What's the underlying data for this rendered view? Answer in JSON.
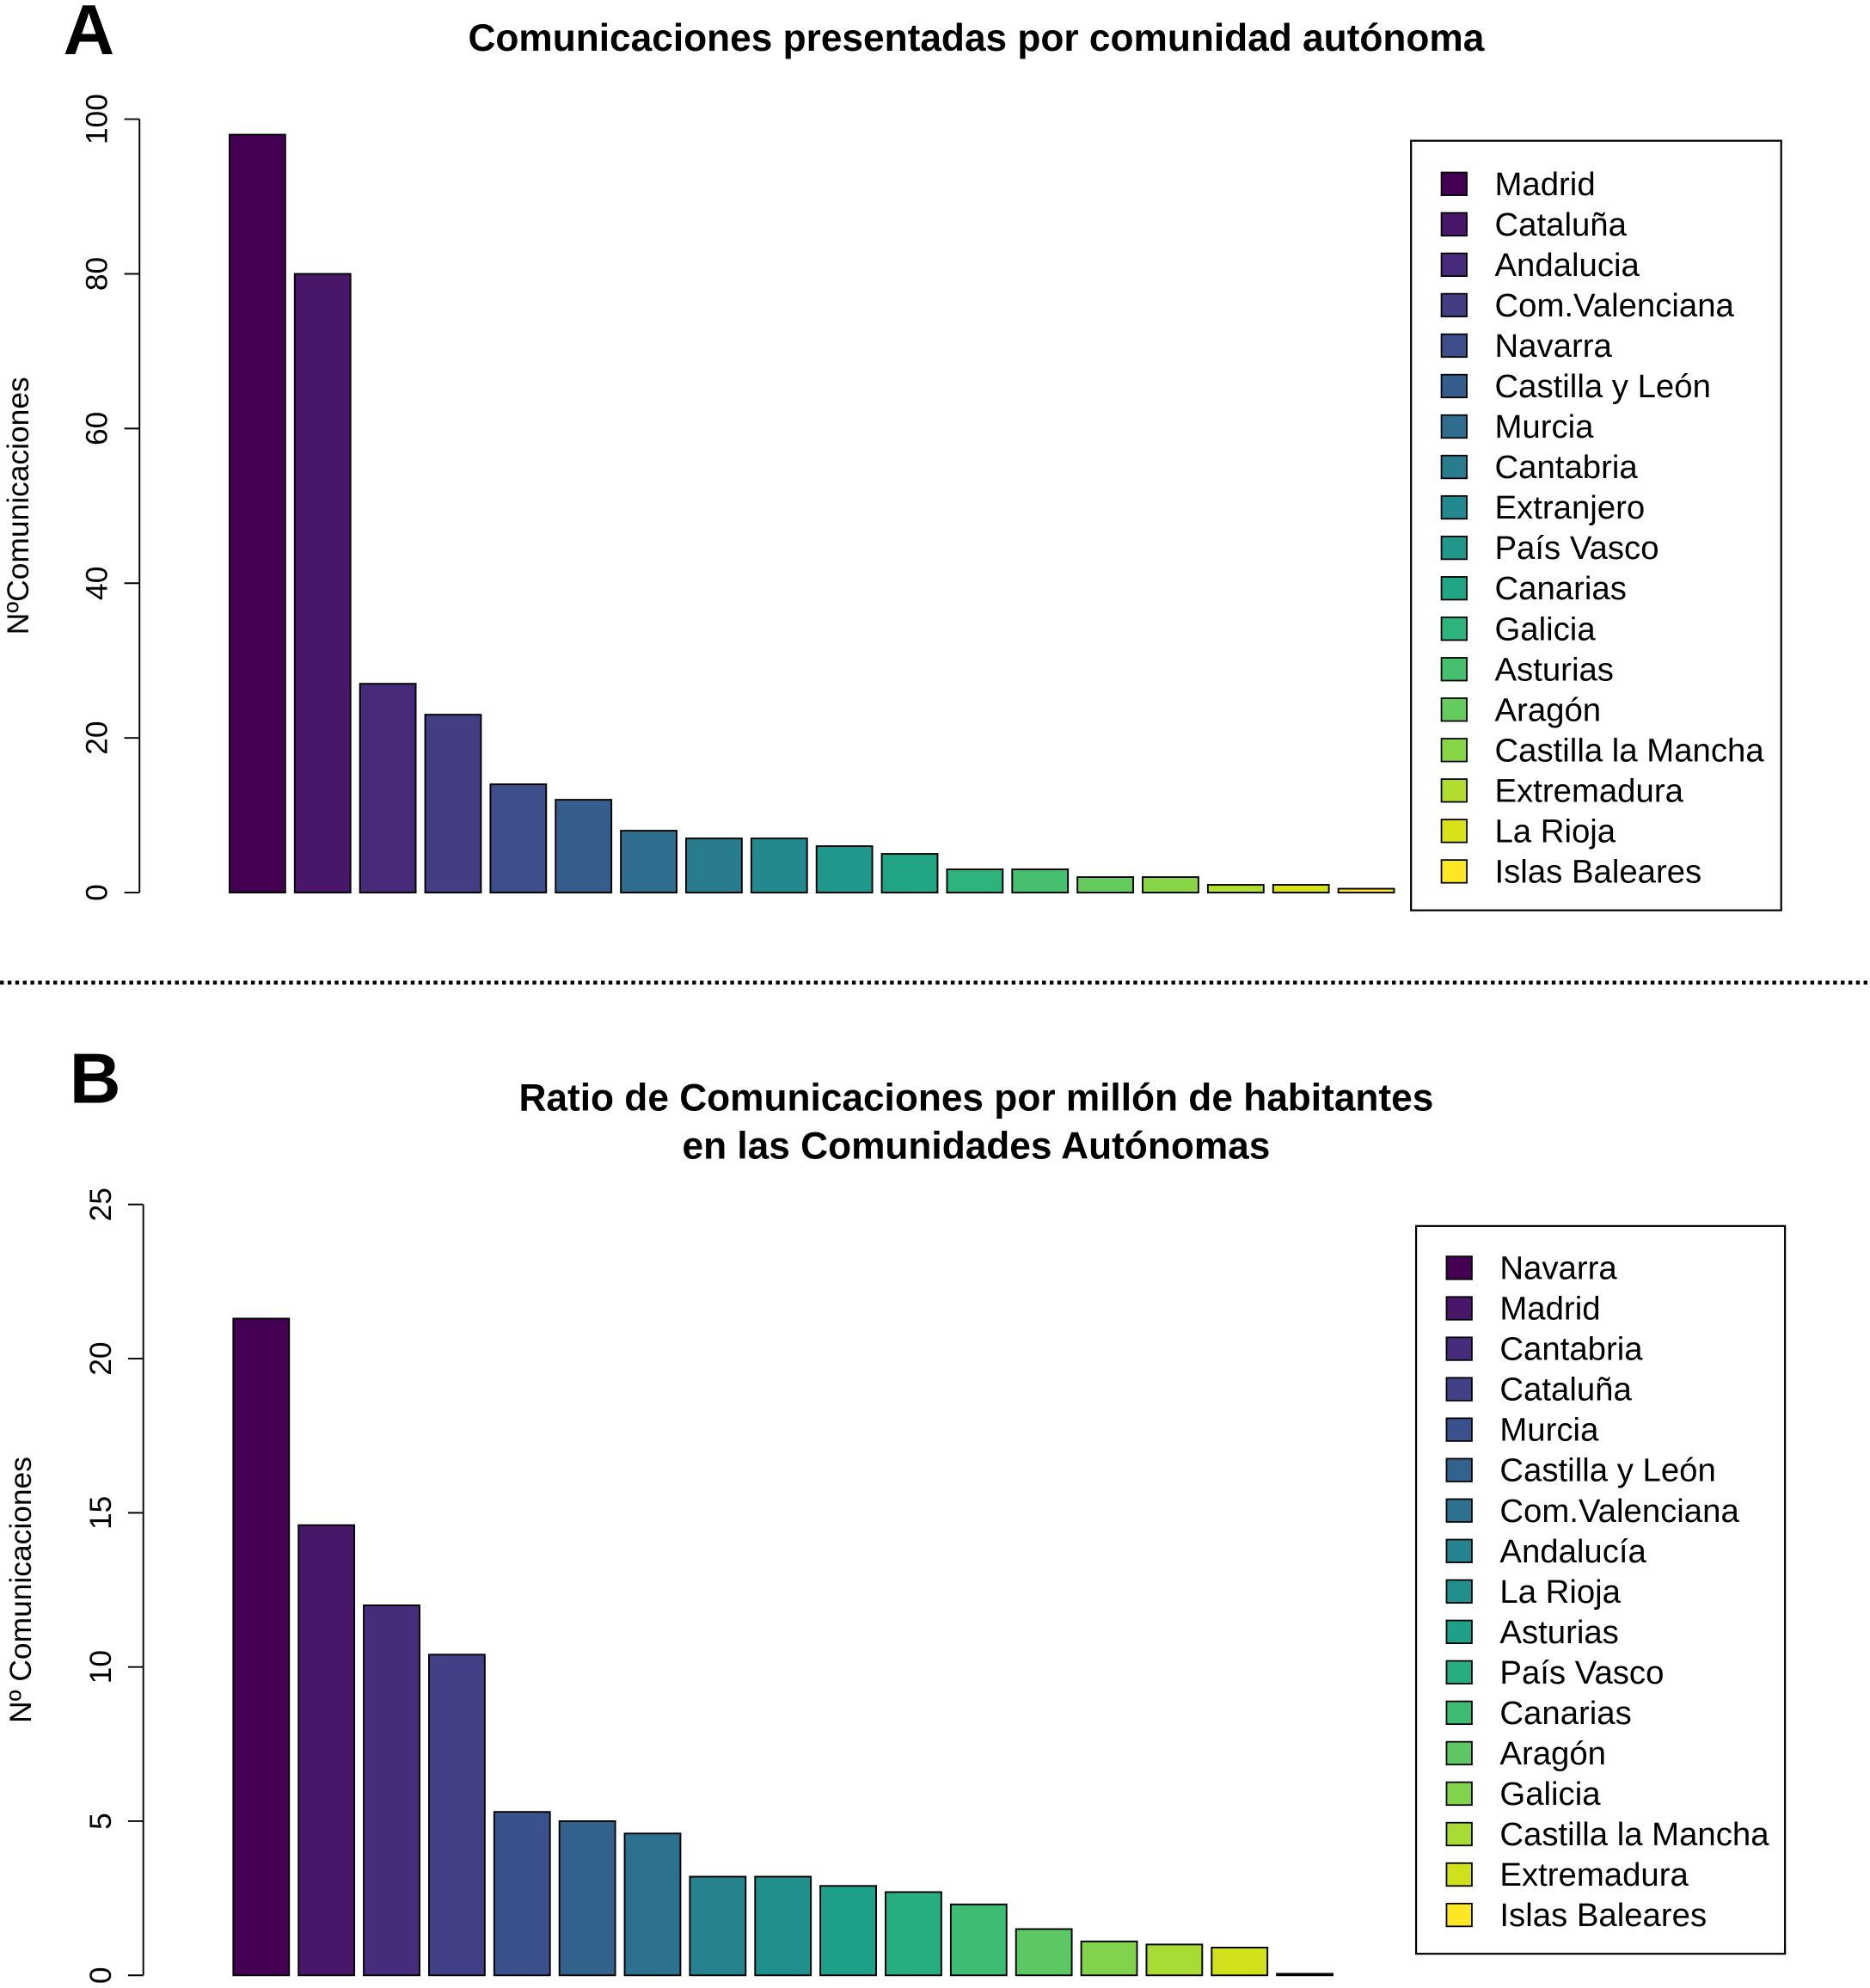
{
  "chart_data": [
    {
      "type": "bar",
      "panel": "A",
      "title": [
        "Comunicaciones presentadas por comunidad autónoma"
      ],
      "ylabel": "NºComunicaciones",
      "categories": [
        "Madrid",
        "Cataluña",
        "Andalucia",
        "Com.Valenciana",
        "Navarra",
        "Castilla y León",
        "Murcia",
        "Cantabria",
        "Extranjero",
        "País Vasco",
        "Canarias",
        "Galicia",
        "Asturias",
        "Aragón",
        "Castilla la Mancha",
        "Extremadura",
        "La Rioja",
        "Islas Baleares"
      ],
      "values": [
        98,
        80,
        27,
        23,
        14,
        12,
        8,
        7,
        7,
        6,
        5,
        3,
        3,
        2,
        2,
        1,
        1,
        0.5
      ],
      "colors": [
        "#440154",
        "#481769",
        "#472A7A",
        "#433D84",
        "#3D4E8A",
        "#355E8D",
        "#2E6D8E",
        "#297B8E",
        "#23898E",
        "#1F978B",
        "#21A585",
        "#2EB37C",
        "#46C06F",
        "#65CB5E",
        "#89D548",
        "#B0DD2F",
        "#D8E219",
        "#FDE725"
      ],
      "ylim": [
        0,
        100
      ],
      "yticks": [
        0,
        20,
        40,
        60,
        80,
        100
      ],
      "legend": "top-right"
    },
    {
      "type": "bar",
      "panel": "B",
      "title": [
        "Ratio de Comunicaciones por millón de habitantes",
        "en las Comunidades Autónomas"
      ],
      "ylabel": "Nº Comunicaciones",
      "categories": [
        "Navarra",
        "Madrid",
        "Cantabria",
        "Cataluña",
        "Murcia",
        "Castilla y León",
        "Com.Valenciana",
        "Andalucía",
        "La Rioja",
        "Asturias",
        "País Vasco",
        "Canarias",
        "Aragón",
        "Galicia",
        "Castilla la Mancha",
        "Extremadura",
        "Islas Baleares"
      ],
      "values": [
        21.3,
        14.6,
        12.0,
        10.4,
        5.3,
        5.0,
        4.6,
        3.2,
        3.2,
        2.9,
        2.7,
        2.3,
        1.5,
        1.1,
        1.0,
        0.9,
        0.05
      ],
      "colors": [
        "#440154",
        "#481769",
        "#472C7B",
        "#424086",
        "#3B518B",
        "#33638D",
        "#2C728E",
        "#26828E",
        "#21908C",
        "#1FA088",
        "#27AD81",
        "#3FBC73",
        "#5DC863",
        "#80D34B",
        "#A8DB34",
        "#D0E11C",
        "#FDE725"
      ],
      "ylim": [
        0,
        25
      ],
      "yticks": [
        0,
        5,
        10,
        15,
        20,
        25
      ],
      "legend": "top-right"
    }
  ]
}
